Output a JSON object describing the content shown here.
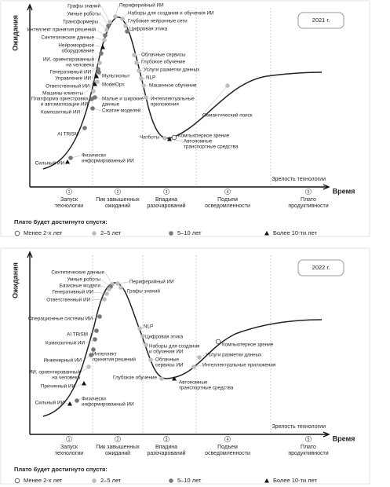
{
  "panels": [
    {
      "year": "2021 г.",
      "y_axis_label": "Ожидания",
      "x_axis_label": "Зрелость технологии",
      "time_label": "Время",
      "phases": [
        {
          "number": "1",
          "label": [
            "Запуск",
            "технологии"
          ]
        },
        {
          "number": "2",
          "label": [
            "Пик завышенных",
            "ожиданий"
          ]
        },
        {
          "number": "3",
          "label": [
            "Впадина",
            "разочарований"
          ]
        },
        {
          "number": "4",
          "label": [
            "Подъем",
            "осведомленности"
          ]
        },
        {
          "number": "5",
          "label": [
            "Плато",
            "продуктивности"
          ]
        }
      ],
      "items": [
        {
          "label": [
            "Графы знаний"
          ],
          "plateau": 1
        },
        {
          "label": [
            "Умные роботы"
          ],
          "plateau": 2
        },
        {
          "label": [
            "Трансформеры"
          ],
          "plateau": 1
        },
        {
          "label": [
            "Интеллект принятия решений"
          ],
          "plateau": 2
        },
        {
          "label": [
            "Синтетические данные"
          ],
          "plateau": 1
        },
        {
          "label": [
            "Нейроморфное",
            "оборудование"
          ],
          "plateau": 3
        },
        {
          "label": [
            "ИИ, ориентированный",
            "на человека"
          ],
          "plateau": 2
        },
        {
          "label": [
            "Генеративный ИИ"
          ],
          "plateau": 1
        },
        {
          "label": [
            "Управление ИИ"
          ],
          "plateau": 2
        },
        {
          "label": [
            "Ответственный ИИ"
          ],
          "plateau": 3
        },
        {
          "label": [
            "Машины-клиенты"
          ],
          "plateau": 3
        },
        {
          "label": [
            "Платформа оркестровки",
            "и автоматизации ИИ"
          ],
          "plateau": 1
        },
        {
          "label": [
            "Композитный ИИ"
          ],
          "plateau": 2
        },
        {
          "label": [
            "AI TRiSM"
          ],
          "plateau": 2
        },
        {
          "label": [
            "Физически",
            "информированный ИИ"
          ],
          "plateau": 2
        },
        {
          "label": [
            "Сильный ИИ"
          ],
          "plateau": 3
        },
        {
          "label": [
            "Периферийный ИИ"
          ],
          "plateau": 1
        },
        {
          "label": [
            "Наборы для создания и обучения ИИ"
          ],
          "plateau": 1
        },
        {
          "label": [
            "Глубокие нейронные сети"
          ],
          "plateau": 1
        },
        {
          "label": [
            "Цифровая этика"
          ],
          "plateau": 2
        },
        {
          "label": [
            "Облачные сервисы"
          ],
          "plateau": 1
        },
        {
          "label": [
            "Глубокое обучение"
          ],
          "plateau": 1
        },
        {
          "label": [
            "Услуги разметки данных"
          ],
          "plateau": 1
        },
        {
          "label": [
            "NLP"
          ],
          "plateau": 1
        },
        {
          "label": [
            "Машинное обучение"
          ],
          "plateau": 1
        },
        {
          "label": [
            "Интеллектуальные",
            "приложения"
          ],
          "plateau": 1
        },
        {
          "label": [
            "Мультиопыт"
          ],
          "plateau": 2
        },
        {
          "label": [
            "ModelOps"
          ],
          "plateau": 1
        },
        {
          "label": [
            "Малые и широкие",
            "данные"
          ],
          "plateau": 2
        },
        {
          "label": [
            "Сжатие моделей"
          ],
          "plateau": 2
        },
        {
          "label": [
            "Чатботы"
          ],
          "plateau": 1
        },
        {
          "label": [
            "Компьютерное зрение"
          ],
          "plateau": 0
        },
        {
          "label": [
            "Автономные",
            "транспортные средства"
          ],
          "plateau": 3
        },
        {
          "label": [
            "Семантический поиск"
          ],
          "plateau": 1
        }
      ],
      "legend": {
        "title": "Плато будет достигнуто спустя:",
        "entries": [
          "Менее 2-х лет",
          "2–5 лет",
          "5–10 лет",
          "Более 10-ти лет"
        ]
      }
    },
    {
      "year": "2022 г.",
      "y_axis_label": "Ожидания",
      "x_axis_label": "Зрелость технологии",
      "time_label": "Время",
      "phases": [
        {
          "number": "1",
          "label": [
            "Запуск",
            "технологии"
          ]
        },
        {
          "number": "2",
          "label": [
            "Пик завышенных",
            "ожиданий"
          ]
        },
        {
          "number": "3",
          "label": [
            "Впадина",
            "разочарований"
          ]
        },
        {
          "number": "4",
          "label": [
            "Подъем",
            "осведомленности"
          ]
        },
        {
          "number": "5",
          "label": [
            "Плато",
            "продуктивности"
          ]
        }
      ],
      "items": [
        {
          "label": [
            "Синтетические данные"
          ],
          "plateau": 1
        },
        {
          "label": [
            "Умные роботы"
          ],
          "plateau": 2
        },
        {
          "label": [
            "Базисные модели"
          ],
          "plateau": 1
        },
        {
          "label": [
            "Генеративный ИИ"
          ],
          "plateau": 1
        },
        {
          "label": [
            "Ответственный ИИ"
          ],
          "plateau": 1
        },
        {
          "label": [
            "Периферийный ИИ"
          ],
          "plateau": 1
        },
        {
          "label": [
            "Графы знаний"
          ],
          "plateau": 1
        },
        {
          "label": [
            "Операционные системы ИИ"
          ],
          "plateau": 2
        },
        {
          "label": [
            "AI TRiSM"
          ],
          "plateau": 2
        },
        {
          "label": [
            "Композитный ИИ"
          ],
          "plateau": 2
        },
        {
          "label": [
            "Инженерный ИИ"
          ],
          "plateau": 2
        },
        {
          "label": [
            "ИИ, ориентированный",
            "на человека"
          ],
          "plateau": 1
        },
        {
          "label": [
            "Причинный ИИ"
          ],
          "plateau": 3
        },
        {
          "label": [
            "Сильный ИИ"
          ],
          "plateau": 3
        },
        {
          "label": [
            "Физически",
            "информированный ИИ"
          ],
          "plateau": 2
        },
        {
          "label": [
            "Интеллект",
            "принятия решений"
          ],
          "plateau": 2
        },
        {
          "label": [
            "NLP"
          ],
          "plateau": 1
        },
        {
          "label": [
            "Цифровая этика"
          ],
          "plateau": 1
        },
        {
          "label": [
            "Наборы для создания",
            "и обучения ИИ"
          ],
          "plateau": 1
        },
        {
          "label": [
            "Облачные",
            "сервисы ИИ"
          ],
          "plateau": 1
        },
        {
          "label": [
            "Глубокое обучение"
          ],
          "plateau": 1
        },
        {
          "label": [
            "Автономные",
            "транспортные средства"
          ],
          "plateau": 3
        },
        {
          "label": [
            "Компьютерное зрение"
          ],
          "plateau": 0
        },
        {
          "label": [
            "Услуги разметки данных"
          ],
          "plateau": 1
        },
        {
          "label": [
            "Интеллектуальные приложения"
          ],
          "plateau": 1
        }
      ],
      "legend": {
        "title": "Плато будет достигнуто спустя:",
        "entries": [
          "Менее 2-х лет",
          "2–5 лет",
          "5–10 лет",
          "Более 10-ти лет"
        ]
      }
    }
  ]
}
